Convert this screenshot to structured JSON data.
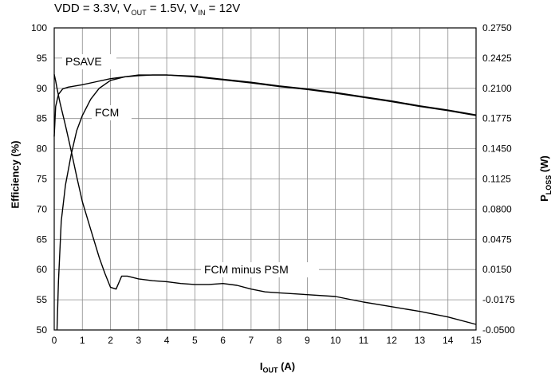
{
  "conditions": {
    "vdd": "VDD = 3.3V, V",
    "vout_sub": "OUT",
    "vout_val": " = 1.5V, V",
    "vin_sub": "IN",
    "vin_val": " = 12V"
  },
  "chart_data": {
    "type": "line",
    "xlabel": {
      "main": "I",
      "sub": "OUT",
      "unit": " (A)"
    },
    "ylabel": "Efficiency (%)",
    "y2label": {
      "main": "P",
      "sub": "LOSS",
      "unit": " (W)"
    },
    "xlim": [
      0,
      15
    ],
    "ylim": [
      50,
      100
    ],
    "y2lim": [
      -0.05,
      0.275
    ],
    "x_ticks": [
      "0",
      "1",
      "2",
      "3",
      "4",
      "5",
      "6",
      "7",
      "8",
      "9",
      "10",
      "11",
      "12",
      "13",
      "14",
      "15"
    ],
    "y_ticks": [
      "50",
      "55",
      "60",
      "65",
      "70",
      "75",
      "80",
      "85",
      "90",
      "95",
      "100"
    ],
    "y2_ticks": [
      "-0.0500",
      "-0.0175",
      "0.0150",
      "0.0475",
      "0.0800",
      "0.1125",
      "0.1450",
      "0.1775",
      "0.2100",
      "0.2425",
      "0.2750"
    ],
    "grid": true,
    "series": [
      {
        "name": "PSAVE",
        "axis": "left",
        "x": [
          0,
          0.05,
          0.15,
          0.3,
          0.5,
          1,
          1.5,
          2,
          2.5,
          3,
          3.5,
          4,
          5,
          6,
          7,
          8,
          9,
          10,
          11,
          12,
          13,
          14,
          15
        ],
        "y": [
          82,
          87,
          89,
          89.9,
          90.2,
          90.6,
          91.1,
          91.6,
          91.9,
          92.1,
          92.2,
          92.2,
          92.0,
          91.5,
          91.0,
          90.4,
          89.9,
          89.3,
          88.6,
          87.9,
          87.1,
          86.4,
          85.6
        ]
      },
      {
        "name": "FCM",
        "axis": "left",
        "x": [
          0.1,
          0.15,
          0.25,
          0.4,
          0.6,
          0.8,
          1,
          1.3,
          1.6,
          2,
          2.5,
          3,
          3.5,
          4,
          5,
          6,
          7,
          8,
          9,
          10,
          11,
          12,
          13,
          14,
          15
        ],
        "y": [
          50,
          58,
          68,
          74,
          79,
          83,
          85.5,
          88.2,
          90.0,
          91.3,
          91.9,
          92.2,
          92.2,
          92.2,
          91.9,
          91.4,
          90.9,
          90.3,
          89.8,
          89.2,
          88.5,
          87.8,
          87.0,
          86.3,
          85.5
        ]
      },
      {
        "name": "FCM minus PSM",
        "axis": "right",
        "x": [
          0,
          0.05,
          0.1,
          0.2,
          0.4,
          0.6,
          0.8,
          1,
          1.3,
          1.6,
          1.8,
          2,
          2.2,
          2.4,
          2.6,
          3,
          3.5,
          4,
          4.5,
          5,
          5.5,
          6,
          6.5,
          7,
          7.5,
          8,
          9,
          10,
          11,
          12,
          13,
          14,
          15
        ],
        "y": [
          0.225,
          0.218,
          0.21,
          0.195,
          0.17,
          0.143,
          0.115,
          0.088,
          0.058,
          0.028,
          0.011,
          -0.004,
          -0.006,
          0.008,
          0.008,
          0.005,
          0.003,
          0.002,
          0.0,
          -0.001,
          -0.001,
          0.0,
          -0.002,
          -0.006,
          -0.009,
          -0.01,
          -0.012,
          -0.014,
          -0.02,
          -0.025,
          -0.03,
          -0.036,
          -0.044
        ]
      }
    ],
    "annotations": [
      "PSAVE",
      "FCM",
      "FCM minus PSM"
    ]
  }
}
